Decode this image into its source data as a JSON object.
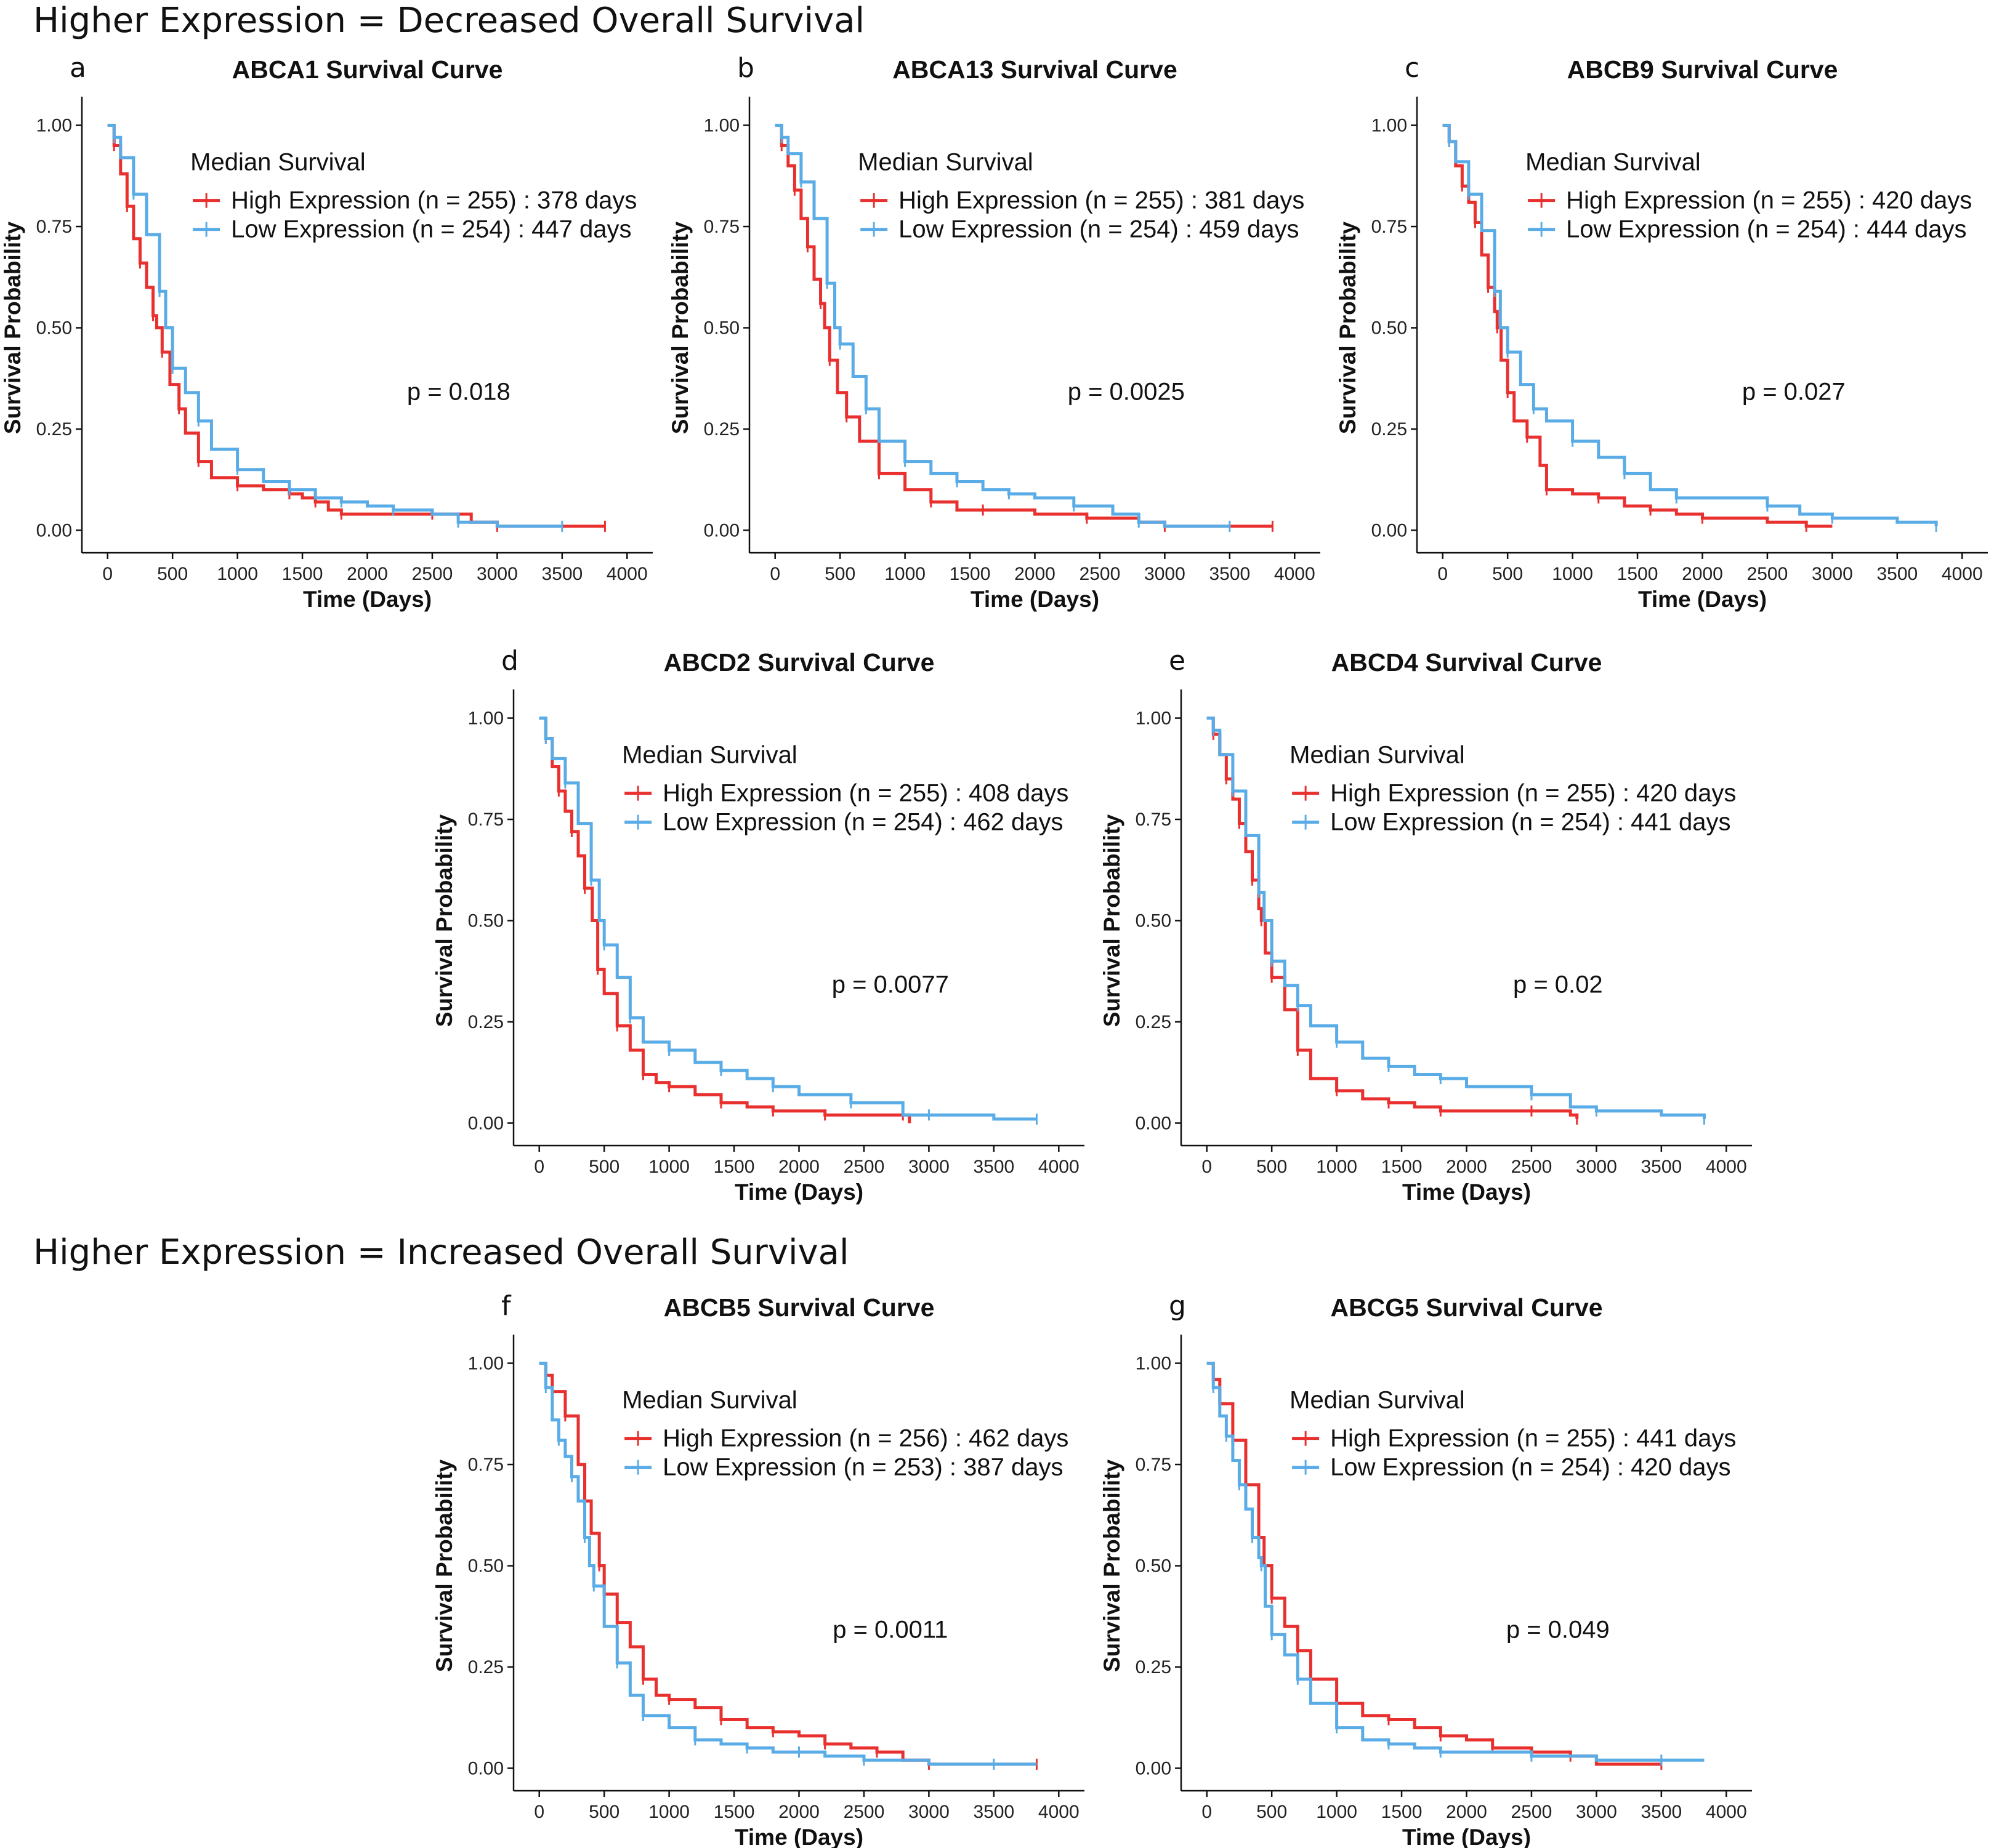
{
  "colors": {
    "high": "#e8302f",
    "low": "#5aace6"
  },
  "sections": [
    {
      "text": "Higher Expression = Decreased Overall Survival"
    },
    {
      "text": "Higher Expression = Increased Overall Survival"
    }
  ],
  "chart_data": [
    {
      "letter": "a",
      "type": "line",
      "title": "ABCA1 Survival Curve",
      "xlabel": "Time (Days)",
      "ylabel": "Survival Probability",
      "xlim": [
        0,
        4000
      ],
      "ylim": [
        0,
        1
      ],
      "xticks": [
        0,
        500,
        1000,
        1500,
        2000,
        2500,
        3000,
        3500,
        4000
      ],
      "yticks": [
        "0.00",
        "0.25",
        "0.50",
        "0.75",
        "1.00"
      ],
      "legend_title": "Median Survival",
      "pvalue": "p = 0.018",
      "series": [
        {
          "name": "High Expression (n = 255) : 378 days",
          "color_key": "high",
          "x": [
            0,
            50,
            100,
            150,
            200,
            250,
            300,
            350,
            378,
            420,
            480,
            550,
            600,
            700,
            800,
            1000,
            1200,
            1400,
            1500,
            1600,
            1700,
            1800,
            2000,
            2500,
            2800,
            3000,
            3500,
            3830
          ],
          "y": [
            1.0,
            0.95,
            0.88,
            0.8,
            0.72,
            0.66,
            0.6,
            0.53,
            0.5,
            0.44,
            0.36,
            0.3,
            0.24,
            0.17,
            0.13,
            0.11,
            0.1,
            0.09,
            0.08,
            0.07,
            0.05,
            0.04,
            0.04,
            0.04,
            0.02,
            0.01,
            0.01,
            0.01
          ]
        },
        {
          "name": "Low Expression (n = 254) : 447 days",
          "color_key": "low",
          "x": [
            0,
            50,
            100,
            200,
            300,
            400,
            447,
            500,
            600,
            700,
            800,
            1000,
            1200,
            1400,
            1600,
            1800,
            2000,
            2200,
            2500,
            2700,
            3000,
            3500
          ],
          "y": [
            1.0,
            0.97,
            0.92,
            0.83,
            0.73,
            0.59,
            0.5,
            0.4,
            0.34,
            0.27,
            0.2,
            0.15,
            0.12,
            0.1,
            0.08,
            0.07,
            0.06,
            0.05,
            0.04,
            0.02,
            0.01,
            0.01
          ]
        }
      ]
    },
    {
      "letter": "b",
      "type": "line",
      "title": "ABCA13 Survival Curve",
      "xlabel": "Time (Days)",
      "ylabel": "Survival Probability",
      "xlim": [
        0,
        4000
      ],
      "ylim": [
        0,
        1
      ],
      "xticks": [
        0,
        500,
        1000,
        1500,
        2000,
        2500,
        3000,
        3500,
        4000
      ],
      "yticks": [
        "0.00",
        "0.25",
        "0.50",
        "0.75",
        "1.00"
      ],
      "legend_title": "Median Survival",
      "pvalue": "p = 0.0025",
      "series": [
        {
          "name": "High Expression (n = 255) : 381 days",
          "color_key": "high",
          "x": [
            0,
            50,
            100,
            150,
            200,
            250,
            300,
            350,
            381,
            420,
            480,
            550,
            650,
            800,
            1000,
            1200,
            1400,
            1600,
            2000,
            2400,
            2800,
            3000,
            3500,
            3830
          ],
          "y": [
            1.0,
            0.95,
            0.9,
            0.84,
            0.77,
            0.7,
            0.62,
            0.56,
            0.5,
            0.42,
            0.34,
            0.28,
            0.22,
            0.14,
            0.1,
            0.07,
            0.05,
            0.05,
            0.04,
            0.03,
            0.02,
            0.01,
            0.01,
            0.01
          ]
        },
        {
          "name": "Low Expression (n = 254) : 459 days",
          "color_key": "low",
          "x": [
            0,
            50,
            100,
            200,
            300,
            400,
            459,
            500,
            600,
            700,
            800,
            1000,
            1200,
            1400,
            1600,
            1800,
            2000,
            2300,
            2600,
            2800,
            3000,
            3500
          ],
          "y": [
            1.0,
            0.97,
            0.93,
            0.86,
            0.77,
            0.61,
            0.5,
            0.46,
            0.38,
            0.3,
            0.22,
            0.17,
            0.14,
            0.12,
            0.1,
            0.09,
            0.08,
            0.06,
            0.04,
            0.02,
            0.01,
            0.01
          ]
        }
      ]
    },
    {
      "letter": "c",
      "type": "line",
      "title": "ABCB9 Survival Curve",
      "xlabel": "Time (Days)",
      "ylabel": "Survival Probability",
      "xlim": [
        0,
        4000
      ],
      "ylim": [
        0,
        1
      ],
      "xticks": [
        0,
        500,
        1000,
        1500,
        2000,
        2500,
        3000,
        3500,
        4000
      ],
      "yticks": [
        "0.00",
        "0.25",
        "0.50",
        "0.75",
        "1.00"
      ],
      "legend_title": "Median Survival",
      "pvalue": "p = 0.027",
      "series": [
        {
          "name": "High Expression (n = 255) : 420 days",
          "color_key": "high",
          "x": [
            0,
            50,
            100,
            150,
            200,
            250,
            300,
            350,
            400,
            420,
            450,
            500,
            550,
            650,
            750,
            800,
            1000,
            1200,
            1400,
            1600,
            1800,
            2000,
            2500,
            2800,
            3000
          ],
          "y": [
            1.0,
            0.96,
            0.9,
            0.85,
            0.81,
            0.76,
            0.68,
            0.6,
            0.54,
            0.5,
            0.42,
            0.34,
            0.27,
            0.23,
            0.16,
            0.1,
            0.09,
            0.08,
            0.06,
            0.05,
            0.04,
            0.03,
            0.02,
            0.01,
            0.01
          ]
        },
        {
          "name": "Low Expression (n = 254) : 444 days",
          "color_key": "low",
          "x": [
            0,
            50,
            100,
            200,
            300,
            400,
            444,
            500,
            600,
            700,
            800,
            1000,
            1200,
            1400,
            1600,
            1800,
            2000,
            2500,
            2750,
            3000,
            3500,
            3800
          ],
          "y": [
            1.0,
            0.96,
            0.91,
            0.83,
            0.74,
            0.59,
            0.5,
            0.44,
            0.36,
            0.3,
            0.27,
            0.22,
            0.18,
            0.14,
            0.1,
            0.08,
            0.08,
            0.06,
            0.04,
            0.03,
            0.02,
            0.01
          ]
        }
      ]
    },
    {
      "letter": "d",
      "type": "line",
      "title": "ABCD2 Survival Curve",
      "xlabel": "Time (Days)",
      "ylabel": "Survival Probability",
      "xlim": [
        0,
        4000
      ],
      "ylim": [
        0,
        1
      ],
      "xticks": [
        0,
        500,
        1000,
        1500,
        2000,
        2500,
        3000,
        3500,
        4000
      ],
      "yticks": [
        "0.00",
        "0.25",
        "0.50",
        "0.75",
        "1.00"
      ],
      "legend_title": "Median Survival",
      "pvalue": "p = 0.0077",
      "series": [
        {
          "name": "High Expression (n = 255) : 408 days",
          "color_key": "high",
          "x": [
            0,
            50,
            100,
            150,
            200,
            250,
            300,
            350,
            408,
            450,
            500,
            600,
            700,
            800,
            900,
            1000,
            1200,
            1400,
            1600,
            1800,
            2000,
            2200,
            2500,
            2800,
            2850
          ],
          "y": [
            1.0,
            0.95,
            0.88,
            0.82,
            0.77,
            0.72,
            0.66,
            0.58,
            0.5,
            0.38,
            0.32,
            0.24,
            0.18,
            0.12,
            0.1,
            0.09,
            0.07,
            0.05,
            0.04,
            0.03,
            0.03,
            0.02,
            0.02,
            0.02,
            0.0
          ]
        },
        {
          "name": "Low Expression (n = 254) : 462 days",
          "color_key": "low",
          "x": [
            0,
            50,
            100,
            200,
            300,
            400,
            462,
            500,
            600,
            700,
            800,
            1000,
            1200,
            1400,
            1600,
            1800,
            2000,
            2400,
            2800,
            3000,
            3500,
            3830
          ],
          "y": [
            1.0,
            0.95,
            0.9,
            0.84,
            0.74,
            0.6,
            0.5,
            0.44,
            0.36,
            0.26,
            0.2,
            0.18,
            0.15,
            0.13,
            0.11,
            0.09,
            0.07,
            0.05,
            0.02,
            0.02,
            0.01,
            0.01
          ]
        }
      ]
    },
    {
      "letter": "e",
      "type": "line",
      "title": "ABCD4 Survival Curve",
      "xlabel": "Time (Days)",
      "ylabel": "Survival Probability",
      "xlim": [
        0,
        4000
      ],
      "ylim": [
        0,
        1
      ],
      "xticks": [
        0,
        500,
        1000,
        1500,
        2000,
        2500,
        3000,
        3500,
        4000
      ],
      "yticks": [
        "0.00",
        "0.25",
        "0.50",
        "0.75",
        "1.00"
      ],
      "legend_title": "Median Survival",
      "pvalue": "p = 0.02",
      "series": [
        {
          "name": "High Expression (n = 255) : 420 days",
          "color_key": "high",
          "x": [
            0,
            50,
            100,
            150,
            200,
            250,
            300,
            350,
            400,
            420,
            450,
            500,
            600,
            700,
            800,
            1000,
            1200,
            1400,
            1600,
            1800,
            2000,
            2500,
            2800,
            2850
          ],
          "y": [
            1.0,
            0.96,
            0.91,
            0.85,
            0.8,
            0.74,
            0.67,
            0.6,
            0.53,
            0.5,
            0.42,
            0.36,
            0.28,
            0.18,
            0.11,
            0.08,
            0.06,
            0.05,
            0.04,
            0.03,
            0.03,
            0.03,
            0.02,
            0.01
          ]
        },
        {
          "name": "Low Expression (n = 254) : 441 days",
          "color_key": "low",
          "x": [
            0,
            50,
            100,
            200,
            300,
            400,
            441,
            500,
            600,
            700,
            800,
            1000,
            1200,
            1400,
            1600,
            1800,
            2000,
            2500,
            2800,
            3000,
            3500,
            3830
          ],
          "y": [
            1.0,
            0.97,
            0.91,
            0.82,
            0.71,
            0.57,
            0.5,
            0.4,
            0.34,
            0.29,
            0.24,
            0.2,
            0.16,
            0.14,
            0.12,
            0.11,
            0.09,
            0.07,
            0.04,
            0.03,
            0.02,
            0.01
          ]
        }
      ]
    },
    {
      "letter": "f",
      "type": "line",
      "title": "ABCB5 Survival Curve",
      "xlabel": "Time (Days)",
      "ylabel": "Survival Probability",
      "xlim": [
        0,
        4000
      ],
      "ylim": [
        0,
        1
      ],
      "xticks": [
        0,
        500,
        1000,
        1500,
        2000,
        2500,
        3000,
        3500,
        4000
      ],
      "yticks": [
        "0.00",
        "0.25",
        "0.50",
        "0.75",
        "1.00"
      ],
      "legend_title": "Median Survival",
      "pvalue": "p = 0.0011",
      "series": [
        {
          "name": "High Expression (n = 256) : 462 days",
          "color_key": "high",
          "x": [
            0,
            50,
            100,
            200,
            300,
            350,
            400,
            462,
            500,
            600,
            700,
            800,
            900,
            1000,
            1200,
            1400,
            1600,
            1800,
            2000,
            2200,
            2400,
            2600,
            2800,
            3000,
            3500,
            3830
          ],
          "y": [
            1.0,
            0.97,
            0.93,
            0.87,
            0.75,
            0.66,
            0.58,
            0.5,
            0.43,
            0.36,
            0.3,
            0.22,
            0.18,
            0.17,
            0.15,
            0.12,
            0.1,
            0.09,
            0.08,
            0.06,
            0.05,
            0.04,
            0.02,
            0.01,
            0.01,
            0.01
          ]
        },
        {
          "name": "Low Expression (n = 253) : 387 days",
          "color_key": "low",
          "x": [
            0,
            50,
            100,
            150,
            200,
            250,
            300,
            350,
            387,
            420,
            500,
            600,
            700,
            800,
            1000,
            1200,
            1400,
            1600,
            1800,
            2000,
            2200,
            2500,
            3000,
            3500,
            3830
          ],
          "y": [
            1.0,
            0.94,
            0.86,
            0.81,
            0.77,
            0.72,
            0.66,
            0.57,
            0.5,
            0.45,
            0.35,
            0.26,
            0.18,
            0.13,
            0.1,
            0.07,
            0.06,
            0.05,
            0.04,
            0.04,
            0.03,
            0.02,
            0.01,
            0.01,
            0.01
          ]
        }
      ]
    },
    {
      "letter": "g",
      "type": "line",
      "title": "ABCG5 Survival Curve",
      "xlabel": "Time (Days)",
      "ylabel": "Survival Probability",
      "xlim": [
        0,
        4000
      ],
      "ylim": [
        0,
        1
      ],
      "xticks": [
        0,
        500,
        1000,
        1500,
        2000,
        2500,
        3000,
        3500,
        4000
      ],
      "yticks": [
        "0.00",
        "0.25",
        "0.50",
        "0.75",
        "1.00"
      ],
      "legend_title": "Median Survival",
      "pvalue": "p = 0.049",
      "series": [
        {
          "name": "High Expression (n = 255) : 441 days",
          "color_key": "high",
          "x": [
            0,
            50,
            100,
            200,
            300,
            400,
            441,
            500,
            600,
            700,
            800,
            1000,
            1200,
            1400,
            1600,
            1800,
            2000,
            2200,
            2500,
            2800,
            3000,
            3500
          ],
          "y": [
            1.0,
            0.96,
            0.9,
            0.81,
            0.7,
            0.57,
            0.5,
            0.42,
            0.35,
            0.29,
            0.22,
            0.16,
            0.13,
            0.12,
            0.1,
            0.08,
            0.07,
            0.05,
            0.04,
            0.03,
            0.01,
            0.01
          ]
        },
        {
          "name": "Low Expression (n = 254) : 420 days",
          "color_key": "low",
          "x": [
            0,
            50,
            100,
            150,
            200,
            250,
            300,
            350,
            400,
            420,
            450,
            500,
            600,
            700,
            800,
            1000,
            1200,
            1400,
            1600,
            1800,
            2000,
            2500,
            3000,
            3500,
            3830
          ],
          "y": [
            1.0,
            0.94,
            0.87,
            0.82,
            0.76,
            0.7,
            0.64,
            0.57,
            0.52,
            0.5,
            0.4,
            0.33,
            0.28,
            0.22,
            0.16,
            0.1,
            0.07,
            0.06,
            0.05,
            0.04,
            0.04,
            0.03,
            0.02,
            0.02,
            0.02
          ]
        }
      ]
    }
  ]
}
